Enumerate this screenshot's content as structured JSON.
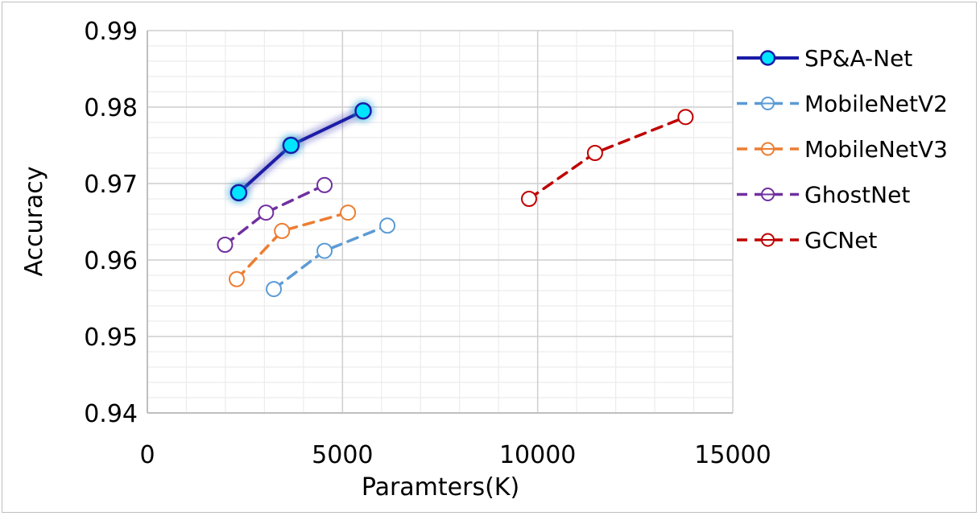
{
  "chart_data": {
    "type": "scatter",
    "title": "",
    "xlabel": "Paramters(K)",
    "ylabel": "Accuracy",
    "xlim": [
      0,
      15000
    ],
    "ylim": [
      0.94,
      0.99
    ],
    "x_ticks": [
      0,
      5000,
      10000,
      15000
    ],
    "x_tick_labels": [
      "0",
      "5000",
      "10000",
      "15000"
    ],
    "y_ticks": [
      0.94,
      0.95,
      0.96,
      0.97,
      0.98,
      0.99
    ],
    "y_tick_labels": [
      "0.94",
      "0.95",
      "0.96",
      "0.97",
      "0.98",
      "0.99"
    ],
    "grid": true,
    "legend_position": "right",
    "series": [
      {
        "name": "SP&A-Net",
        "color": "#1a1aa6",
        "marker_fill": "#00e5ff",
        "line_style": "solid",
        "x": [
          2340,
          3680,
          5530
        ],
        "y": [
          0.9688,
          0.975,
          0.9795
        ]
      },
      {
        "name": "MobileNetV2",
        "color": "#5b9bd5",
        "marker_fill": "none",
        "line_style": "dashed",
        "x": [
          3240,
          4540,
          6150
        ],
        "y": [
          0.9562,
          0.9612,
          0.9645
        ]
      },
      {
        "name": "MobileNetV3",
        "color": "#ed7d31",
        "marker_fill": "none",
        "line_style": "dashed",
        "x": [
          2290,
          3450,
          5140
        ],
        "y": [
          0.9575,
          0.9638,
          0.9662
        ]
      },
      {
        "name": "GhostNet",
        "color": "#7030a0",
        "marker_fill": "none",
        "line_style": "dashed",
        "x": [
          1990,
          3040,
          4540
        ],
        "y": [
          0.962,
          0.9662,
          0.9698
        ]
      },
      {
        "name": "GCNet",
        "color": "#c00000",
        "marker_fill": "none",
        "line_style": "dashed",
        "x": [
          9780,
          11470,
          13790
        ],
        "y": [
          0.968,
          0.974,
          0.9787
        ]
      }
    ]
  }
}
